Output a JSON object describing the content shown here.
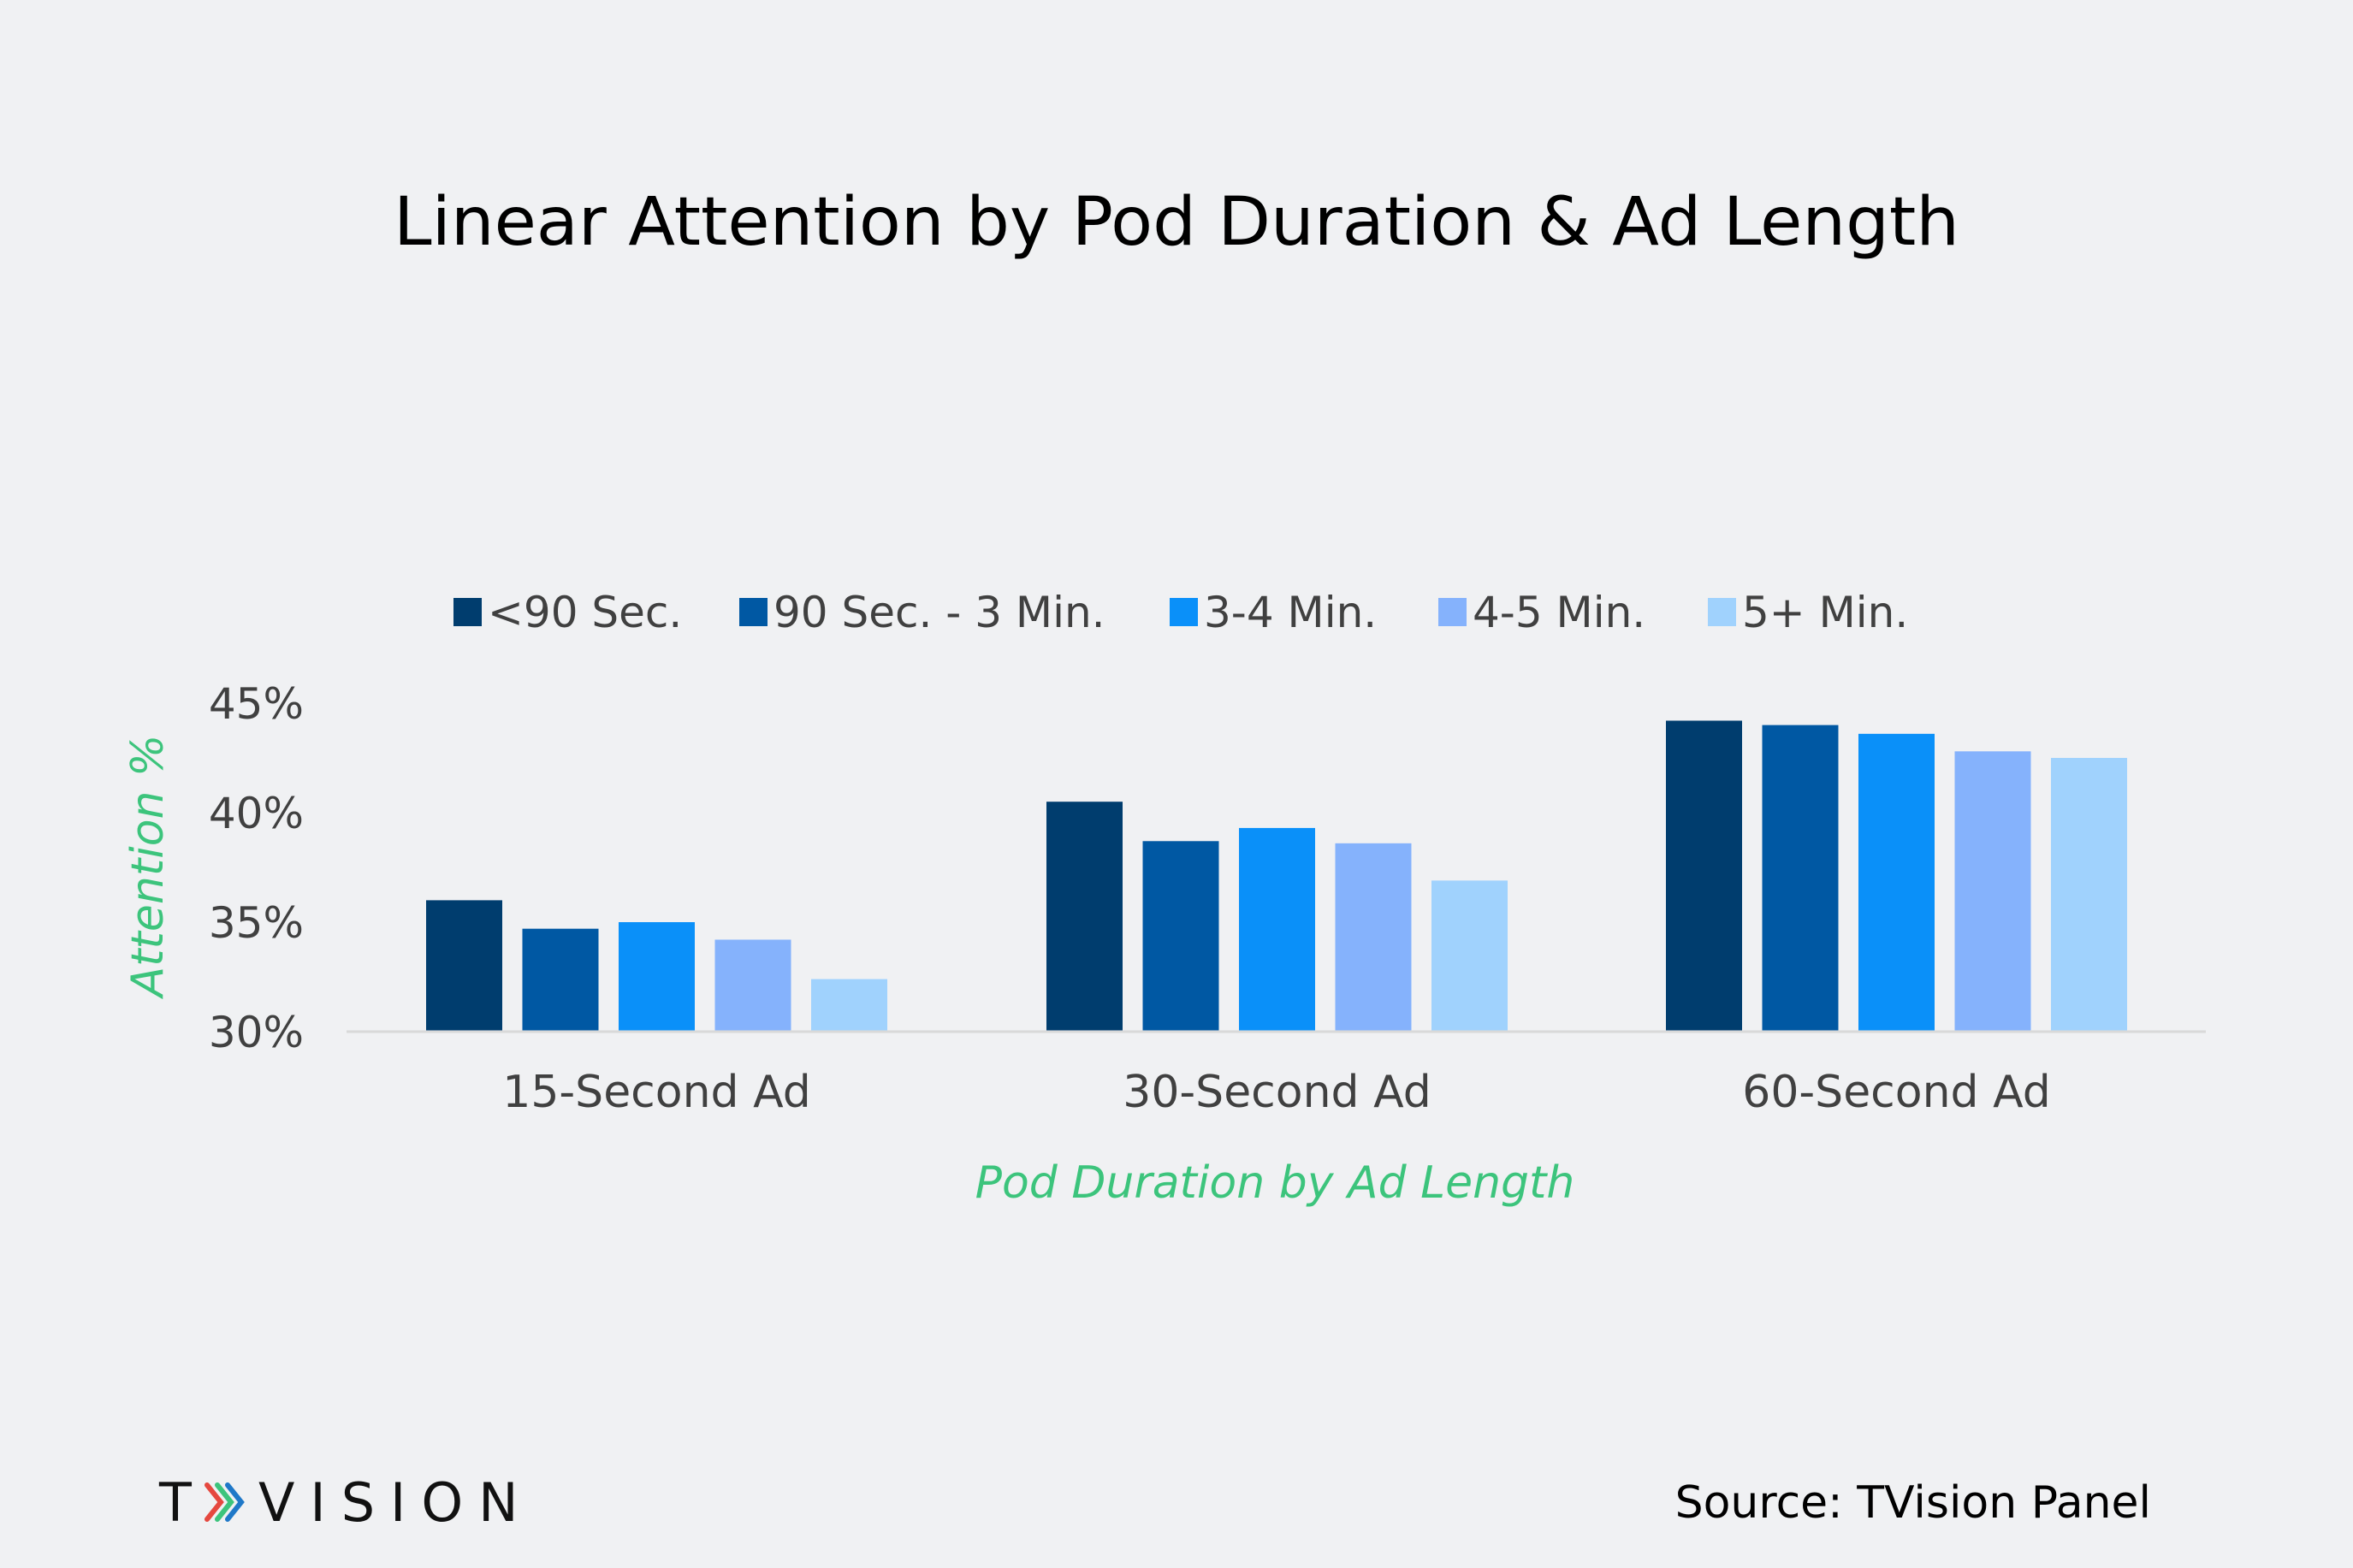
{
  "chart_data": {
    "type": "bar",
    "title": "Linear Attention by Pod Duration & Ad Length",
    "xlabel": "Pod Duration by Ad Length",
    "ylabel": "Attention %",
    "categories": [
      "15-Second Ad",
      "30-Second Ad",
      "60-Second Ad"
    ],
    "series": [
      {
        "name": "<90 Sec.",
        "color": "#003d6e",
        "values": [
          36.0,
          40.5,
          44.2
        ]
      },
      {
        "name": "90 Sec. - 3 Min.",
        "color": "#0058a3",
        "values": [
          34.7,
          38.7,
          44.0
        ]
      },
      {
        "name": "3-4 Min.",
        "color": "#0a90f9",
        "values": [
          35.0,
          39.3,
          43.6
        ]
      },
      {
        "name": "4-5 Min.",
        "color": "#85b2fc",
        "values": [
          34.2,
          38.6,
          42.8
        ]
      },
      {
        "name": "5+ Min.",
        "color": "#a0d2fd",
        "values": [
          32.4,
          36.9,
          42.5
        ]
      }
    ],
    "ylim": [
      30,
      45
    ],
    "yticks": [
      30,
      35,
      40,
      45
    ],
    "ytick_labels": [
      "30%",
      "35%",
      "40%",
      "45%"
    ],
    "grid": false,
    "legend_position": "top"
  },
  "footer": {
    "logo_left": "T",
    "logo_right": "VISION",
    "logo_arrow_colors": [
      "#e5483f",
      "#3cc47c",
      "#1f78c8"
    ],
    "source": "Source: TVision Panel"
  }
}
